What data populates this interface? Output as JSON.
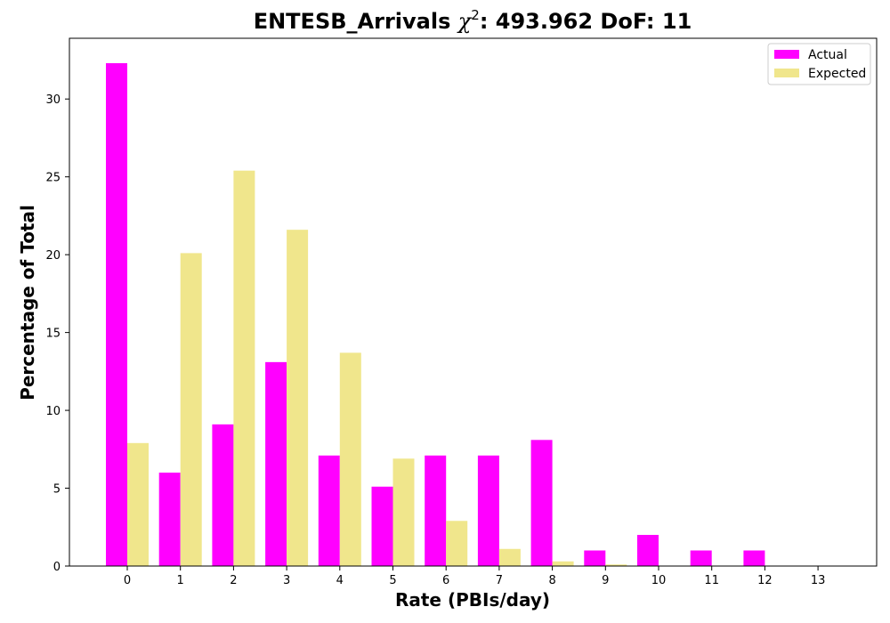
{
  "chart_data": {
    "type": "bar",
    "title_prefix": "ENTESB_Arrivals ",
    "title_chi": "χ",
    "title_sup": "2",
    "title_suffix": ": 493.962 DoF: 11",
    "xlabel": "Rate (PBIs/day)",
    "ylabel": "Percentage of Total",
    "categories": [
      "0",
      "1",
      "2",
      "3",
      "4",
      "5",
      "6",
      "7",
      "8",
      "9",
      "10",
      "11",
      "12",
      "13"
    ],
    "yticks": [
      "0",
      "5",
      "10",
      "15",
      "20",
      "25",
      "30"
    ],
    "ylim": [
      0,
      34
    ],
    "series": [
      {
        "name": "Actual",
        "color": "#ff00ff",
        "values": [
          32.3,
          6.0,
          9.1,
          13.1,
          7.1,
          5.1,
          7.1,
          7.1,
          8.1,
          1.0,
          2.0,
          1.0,
          1.0,
          0
        ]
      },
      {
        "name": "Expected",
        "color": "#f0e68c",
        "values": [
          7.9,
          20.1,
          25.4,
          21.6,
          13.7,
          6.9,
          2.9,
          1.1,
          0.3,
          0.1,
          0.0,
          0.0,
          0.0,
          0.0
        ]
      }
    ],
    "legend_position": "top-right",
    "grid": false
  }
}
